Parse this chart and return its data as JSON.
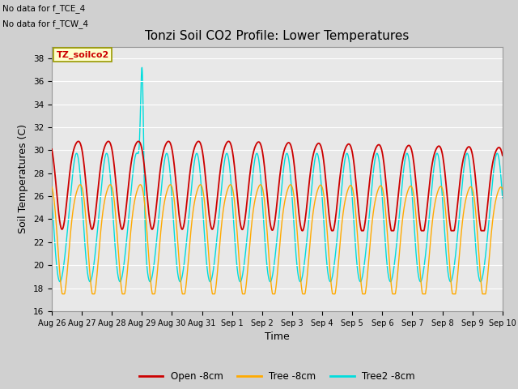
{
  "title": "Tonzi Soil CO2 Profile: Lower Temperatures",
  "xlabel": "Time",
  "ylabel": "Soil Temperatures (C)",
  "annotations": [
    "No data for f_TCE_4",
    "No data for f_TCW_4"
  ],
  "watermark": "TZ_soilco2",
  "ylim": [
    16,
    39
  ],
  "yticks": [
    16,
    18,
    20,
    22,
    24,
    26,
    28,
    30,
    32,
    34,
    36,
    38
  ],
  "x_labels": [
    "Aug 26",
    "Aug 27",
    "Aug 28",
    "Aug 29",
    "Aug 30",
    "Aug 31",
    "Sep 1",
    "Sep 2",
    "Sep 3",
    "Sep 4",
    "Sep 5",
    "Sep 6",
    "Sep 7",
    "Sep 8",
    "Sep 9",
    "Sep 10"
  ],
  "colors": {
    "open": "#cc0000",
    "tree": "#ffaa00",
    "tree2": "#00dddd"
  },
  "legend_labels": [
    "Open -8cm",
    "Tree -8cm",
    "Tree2 -8cm"
  ],
  "fig_bg": "#d0d0d0",
  "plot_bg": "#e8e8e8",
  "grid_color": "#ffffff"
}
